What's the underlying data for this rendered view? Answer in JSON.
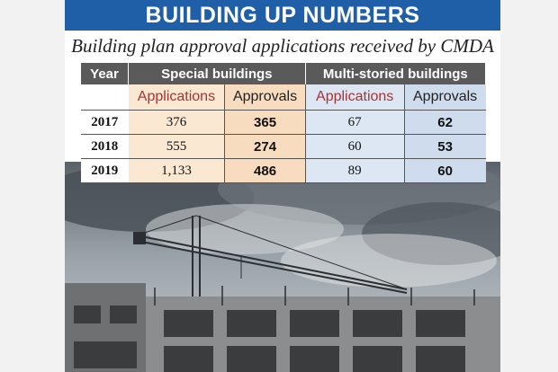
{
  "banner_title": "BUILDING UP NUMBERS",
  "subtitle": "Building plan approval applications received by CMDA",
  "table": {
    "col_year": "Year",
    "group_special": "Special buildings",
    "group_multi": "Multi-storied buildings",
    "sub_applications": "Applications",
    "sub_approvals": "Approvals",
    "rows": [
      {
        "year": "2017",
        "special_applications": "376",
        "special_approvals": "365",
        "multi_applications": "67",
        "multi_approvals": "62"
      },
      {
        "year": "2018",
        "special_applications": "555",
        "special_approvals": "274",
        "multi_applications": "60",
        "multi_approvals": "53"
      },
      {
        "year": "2019",
        "special_applications": "1,133",
        "special_approvals": "486",
        "multi_applications": "89",
        "multi_approvals": "60"
      }
    ]
  },
  "colors": {
    "banner": "#1f5fa8",
    "header": "#5a5a5a",
    "applications_text": "#a83232",
    "special_fill": "#fbe8d3",
    "multi_fill": "#dde7f3"
  },
  "image": "construction-site-with-tower-crane"
}
